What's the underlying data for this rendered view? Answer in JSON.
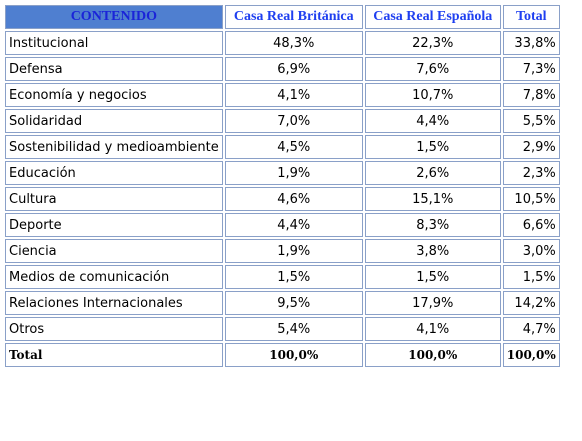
{
  "table": {
    "header": [
      "CONTENIDO",
      "Casa Real Británica",
      "Casa Real Española",
      "Total"
    ],
    "rows": [
      [
        "Institucional",
        "48,3%",
        "22,3%",
        "33,8%"
      ],
      [
        "Defensa",
        "6,9%",
        "7,6%",
        "7,3%"
      ],
      [
        "Economía y negocios",
        "4,1%",
        "10,7%",
        "7,8%"
      ],
      [
        "Solidaridad",
        "7,0%",
        "4,4%",
        "5,5%"
      ],
      [
        "Sostenibilidad y medioambiente",
        "4,5%",
        "1,5%",
        "2,9%"
      ],
      [
        "Educación",
        "1,9%",
        "2,6%",
        "2,3%"
      ],
      [
        "Cultura",
        "4,6%",
        "15,1%",
        "10,5%"
      ],
      [
        "Deporte",
        "4,4%",
        "8,3%",
        "6,6%"
      ],
      [
        "Ciencia",
        "1,9%",
        "3,8%",
        "3,0%"
      ],
      [
        "Medios de comunicación",
        "1,5%",
        "1,5%",
        "1,5%"
      ],
      [
        "Relaciones Internacionales",
        "9,5%",
        "17,9%",
        "14,2%"
      ],
      [
        "Otros",
        "5,4%",
        "4,1%",
        "4,7%"
      ]
    ],
    "total": [
      "Total",
      "100,0%",
      "100,0%",
      "100,0%"
    ]
  }
}
